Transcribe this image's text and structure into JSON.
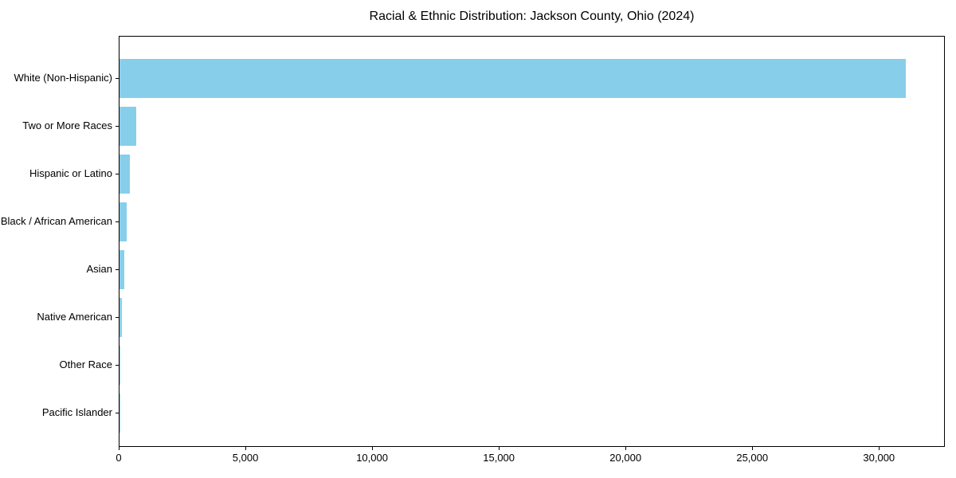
{
  "chart_data": {
    "type": "bar",
    "orientation": "horizontal",
    "title": "Racial & Ethnic Distribution: Jackson County, Ohio (2024)",
    "categories": [
      "White (Non-Hispanic)",
      "Two or More Races",
      "Hispanic or Latino",
      "Black / African American",
      "Asian",
      "Native American",
      "Other Race",
      "Pacific Islander"
    ],
    "values": [
      31100,
      660,
      400,
      290,
      200,
      110,
      10,
      4
    ],
    "xlabel": "",
    "ylabel": "",
    "xlim": [
      0,
      32600
    ],
    "x_ticks": [
      0,
      5000,
      10000,
      15000,
      20000,
      25000,
      30000
    ],
    "x_tick_labels": [
      "0",
      "5,000",
      "10,000",
      "15,000",
      "20,000",
      "25,000",
      "30,000"
    ],
    "bar_color": "#87CEEB",
    "grid": false,
    "legend": "none",
    "category_order": "largest value at top"
  }
}
